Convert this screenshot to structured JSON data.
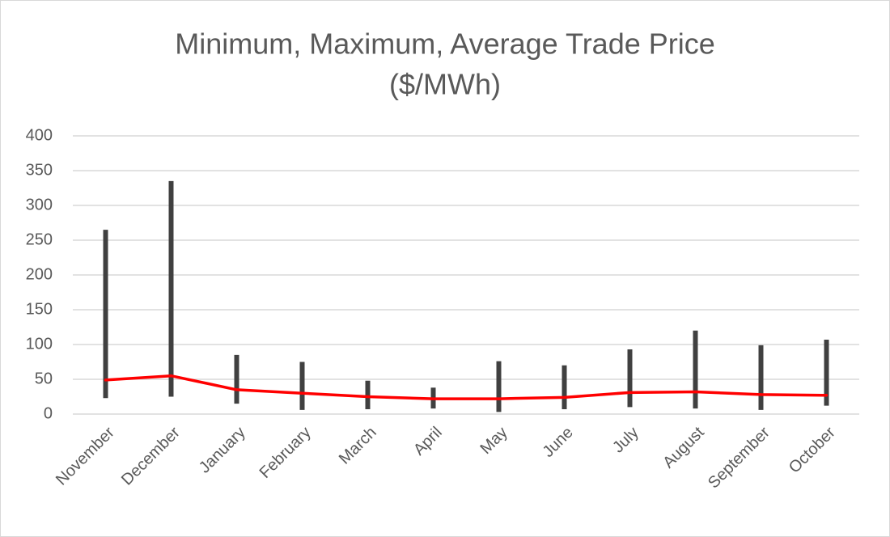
{
  "chart_data": {
    "type": "hilo-line",
    "title": [
      "Minimum, Maximum, Average Trade Price",
      "($/MWh)"
    ],
    "categories": [
      "November",
      "December",
      "January",
      "February",
      "March",
      "April",
      "May",
      "June",
      "July",
      "August",
      "September",
      "October"
    ],
    "ranges": {
      "color": "#404040",
      "low": [
        23,
        25,
        15,
        6,
        7,
        8,
        3,
        7,
        10,
        8,
        6,
        12
      ],
      "high": [
        265,
        335,
        85,
        75,
        48,
        38,
        76,
        70,
        93,
        120,
        99,
        107
      ]
    },
    "line": {
      "color": "#ff0000",
      "values": [
        49,
        55,
        35,
        30,
        25,
        22,
        22,
        24,
        31,
        32,
        28,
        27
      ]
    },
    "ylim": [
      0,
      400
    ],
    "yticks": [
      0,
      50,
      100,
      150,
      200,
      250,
      300,
      350,
      400
    ],
    "grid": true
  }
}
